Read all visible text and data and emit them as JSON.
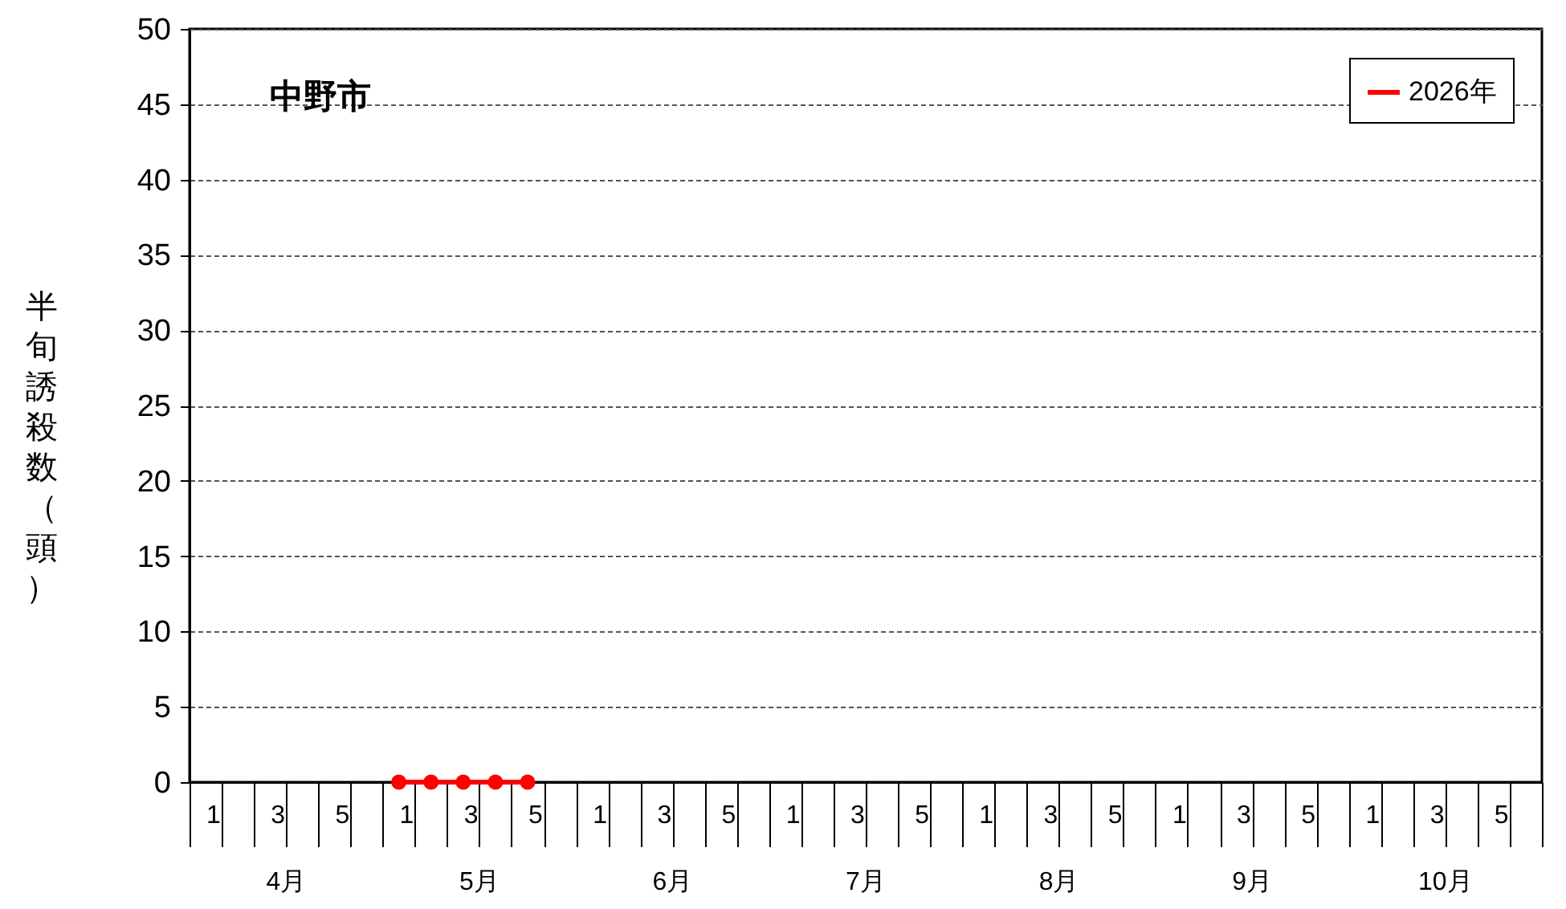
{
  "chart_data": {
    "type": "line",
    "title": "中野市",
    "ylabel": "半旬誘殺数（頭）",
    "categories": [
      "1",
      null,
      "3",
      null,
      "5",
      null,
      "1",
      null,
      "3",
      null,
      "5",
      null,
      "1",
      null,
      "3",
      null,
      "5",
      null,
      "1",
      null,
      "3",
      null,
      "5",
      null,
      "1",
      null,
      "3",
      null,
      "5",
      null,
      "1",
      null,
      "3",
      null,
      "5",
      null,
      "1",
      null,
      "3",
      null,
      "5",
      null
    ],
    "annotations": [
      "4月",
      "5月",
      "6月",
      "7月",
      "8月",
      "9月",
      "10月"
    ],
    "series": [
      {
        "name": "2026年",
        "color": "#ff0000",
        "values": [
          null,
          null,
          null,
          null,
          null,
          null,
          0,
          0,
          0,
          0,
          0,
          null,
          null,
          null,
          null,
          null,
          null,
          null,
          null,
          null,
          null,
          null,
          null,
          null,
          null,
          null,
          null,
          null,
          null,
          null,
          null,
          null,
          null,
          null,
          null,
          null,
          null,
          null,
          null,
          null,
          null,
          null
        ]
      }
    ],
    "ylim": [
      0,
      50
    ],
    "yticks": [
      0,
      5,
      10,
      15,
      20,
      25,
      30,
      35,
      40,
      45,
      50
    ],
    "grid": "y",
    "legend": "top right",
    "marker": "circle",
    "line_style": "solid"
  }
}
